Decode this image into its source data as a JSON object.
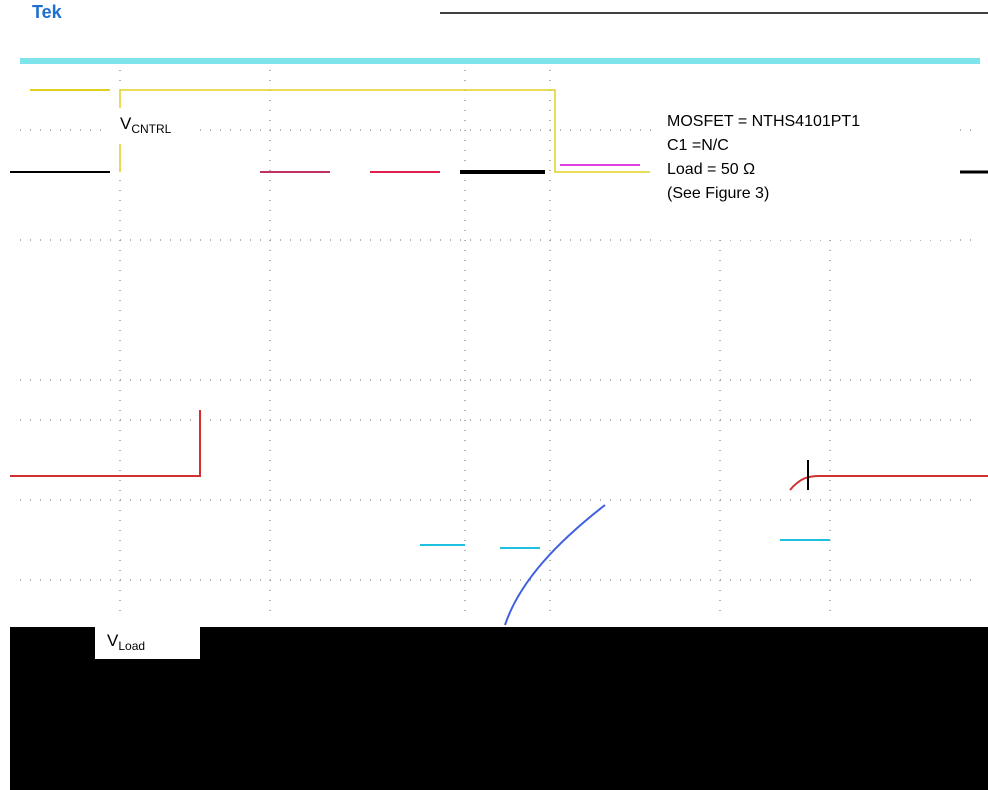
{
  "header": {
    "brand": "Tek"
  },
  "labels": {
    "control": {
      "main": "V",
      "sub": "CNTRL"
    },
    "load": {
      "main": "V",
      "sub": "Load"
    }
  },
  "info": {
    "lines": [
      "MOSFET = NTHS4101PT1",
      "C1 =N/C",
      "Load = 50 Ω",
      "(See Figure 3)"
    ]
  }
}
